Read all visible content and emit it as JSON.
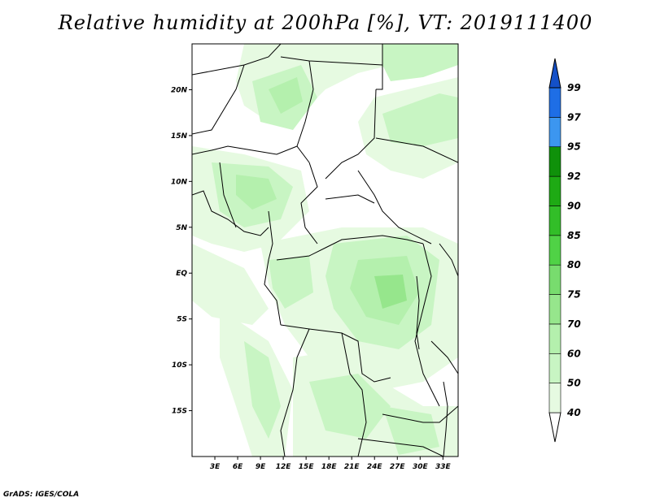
{
  "title": "Relative humidity at 200hPa [%], VT: 2019111400",
  "credit": "GrADS: IGES/COLA",
  "map": {
    "lon_range": [
      0,
      35
    ],
    "lat_range": [
      -20,
      25
    ],
    "lat_ticks": [
      {
        "value": 20,
        "label": "20N"
      },
      {
        "value": 15,
        "label": "15N"
      },
      {
        "value": 10,
        "label": "10N"
      },
      {
        "value": 5,
        "label": "5N"
      },
      {
        "value": 0,
        "label": "EQ"
      },
      {
        "value": -5,
        "label": "5S"
      },
      {
        "value": -10,
        "label": "10S"
      },
      {
        "value": -15,
        "label": "15S"
      }
    ],
    "lon_ticks": [
      {
        "value": 3,
        "label": "3E"
      },
      {
        "value": 6,
        "label": "6E"
      },
      {
        "value": 9,
        "label": "9E"
      },
      {
        "value": 12,
        "label": "12E"
      },
      {
        "value": 15,
        "label": "15E"
      },
      {
        "value": 18,
        "label": "18E"
      },
      {
        "value": 21,
        "label": "21E"
      },
      {
        "value": 24,
        "label": "24E"
      },
      {
        "value": 27,
        "label": "27E"
      },
      {
        "value": 30,
        "label": "30E"
      },
      {
        "value": 33,
        "label": "33E"
      }
    ]
  },
  "colorbar": {
    "levels": [
      {
        "label": "40",
        "color": "#ffffff"
      },
      {
        "label": "50",
        "color": "#e6fae1"
      },
      {
        "label": "60",
        "color": "#c8f5c3"
      },
      {
        "label": "70",
        "color": "#b4f0ad"
      },
      {
        "label": "75",
        "color": "#96e68c"
      },
      {
        "label": "80",
        "color": "#78dc6e"
      },
      {
        "label": "85",
        "color": "#50d246"
      },
      {
        "label": "90",
        "color": "#32be28"
      },
      {
        "label": "92",
        "color": "#1eaa14"
      },
      {
        "label": "95",
        "color": "#0f910a"
      },
      {
        "label": "97",
        "color": "#3c96f0"
      },
      {
        "label": "99",
        "color": "#1e6ee6"
      }
    ],
    "top_color": "#1450c8"
  }
}
